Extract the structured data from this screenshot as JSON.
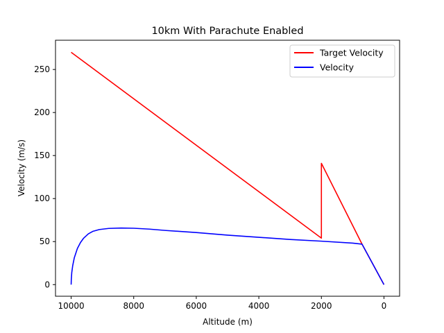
{
  "chart_data": {
    "type": "line",
    "title": "10km With Parachute Enabled",
    "xlabel": "Altitude (m)",
    "ylabel": "Velocity (m/s)",
    "xlim": [
      10500,
      -500
    ],
    "ylim": [
      -13.5,
      284
    ],
    "x_inverted": true,
    "xticks": [
      10000,
      8000,
      6000,
      4000,
      2000,
      0
    ],
    "yticks": [
      0,
      50,
      100,
      150,
      200,
      250
    ],
    "grid": false,
    "legend_position": "top-right",
    "series": [
      {
        "name": "Target Velocity",
        "color": "#ff0000",
        "points": [
          [
            10000,
            270
          ],
          [
            2000,
            54
          ],
          [
            2000,
            141
          ],
          [
            700,
            47
          ],
          [
            0,
            0
          ]
        ]
      },
      {
        "name": "Velocity",
        "color": "#0000ff",
        "points": [
          [
            10000,
            0
          ],
          [
            9995,
            6
          ],
          [
            9980,
            14
          ],
          [
            9950,
            22
          ],
          [
            9900,
            31
          ],
          [
            9800,
            42
          ],
          [
            9700,
            49
          ],
          [
            9600,
            54
          ],
          [
            9450,
            59
          ],
          [
            9300,
            62
          ],
          [
            9100,
            64
          ],
          [
            8800,
            65.3
          ],
          [
            8400,
            65.8
          ],
          [
            8000,
            65.5
          ],
          [
            7500,
            64.5
          ],
          [
            7000,
            63
          ],
          [
            6000,
            60.5
          ],
          [
            5000,
            57.5
          ],
          [
            4000,
            55
          ],
          [
            3000,
            52.5
          ],
          [
            2000,
            50.5
          ],
          [
            1000,
            48.2
          ],
          [
            700,
            47
          ],
          [
            0,
            0
          ]
        ]
      }
    ]
  }
}
